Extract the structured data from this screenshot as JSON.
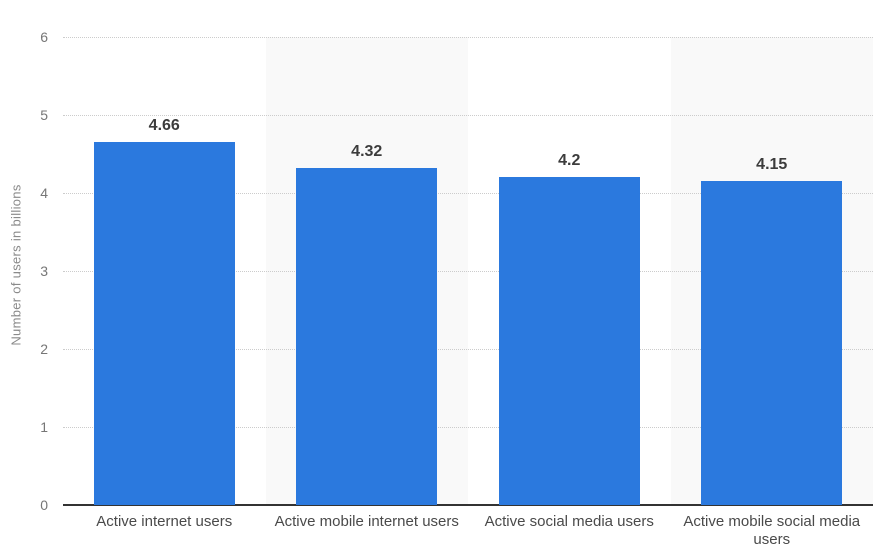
{
  "chart_data": {
    "type": "bar",
    "title": "",
    "categories": [
      "Active internet users",
      "Active mobile internet users",
      "Active social media users",
      "Active mobile social media users"
    ],
    "values": [
      4.66,
      4.32,
      4.2,
      4.15
    ],
    "value_labels": [
      "4.66",
      "4.32",
      "4.2",
      "4.15"
    ],
    "xlabel": "",
    "ylabel": "Number of users in billions",
    "ylim": [
      0,
      6
    ],
    "yticks": [
      0,
      1,
      2,
      3,
      4,
      5,
      6
    ],
    "grid": "horizontal-dotted",
    "legend": "none",
    "plot_bands": "light gray shading behind 2nd and 4th category columns",
    "colors": {
      "bar": "#2b79de",
      "plot_band": "#f9f9f9",
      "gridline": "#cccccc",
      "axis_line": "#333333",
      "tick_label": "#767676",
      "category_label": "#4a4a4a",
      "value_label": "#3c3c3c",
      "axis_title": "#8a8a8a",
      "background": "#ffffff"
    }
  }
}
